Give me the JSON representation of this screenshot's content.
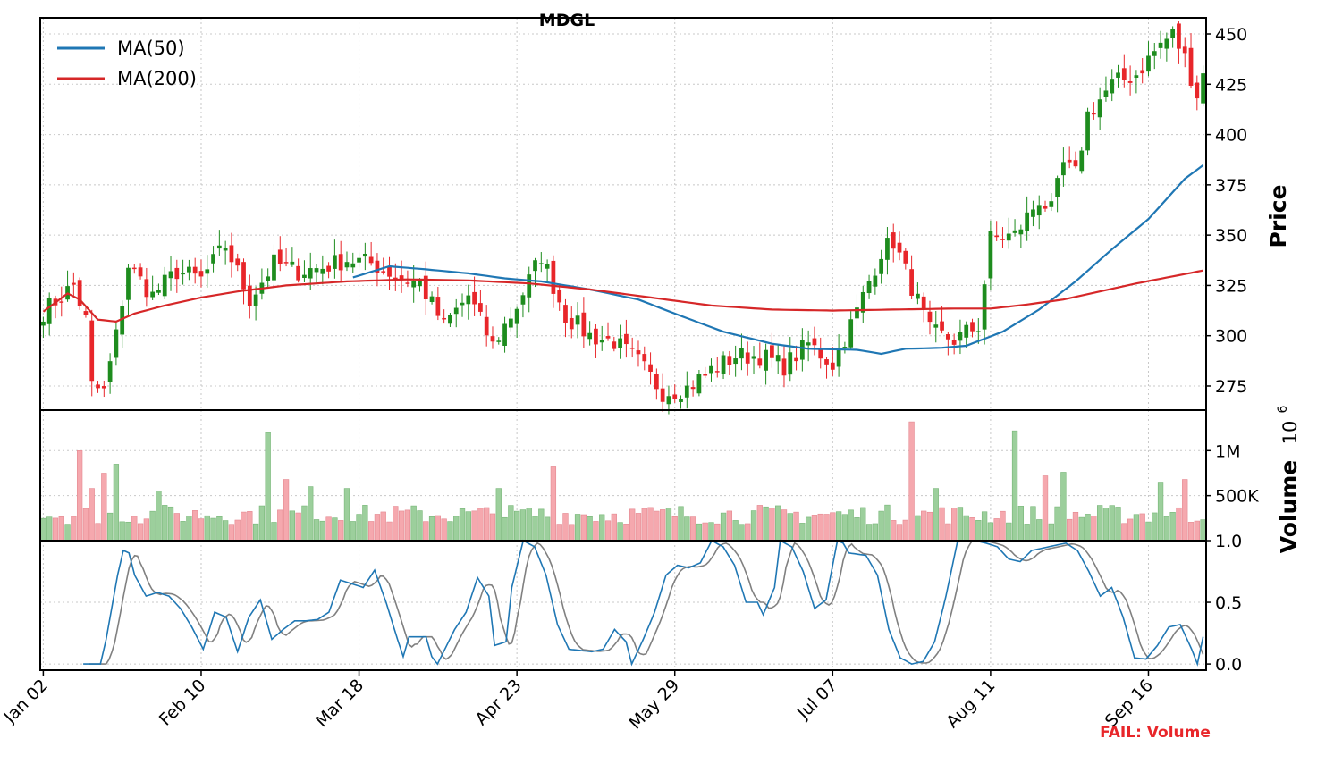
{
  "chart_data": {
    "type": "candlestick",
    "title": "MDGL",
    "ticker": "MDGL",
    "x_tick_labels": [
      "Jan 02",
      "Feb 10",
      "Mar 18",
      "Apr 23",
      "May 29",
      "Jul 07",
      "Aug 11",
      "Sep 16"
    ],
    "x_tick_index": [
      0,
      26,
      52,
      78,
      104,
      130,
      156,
      182
    ],
    "n_sessions": 192,
    "price_panel": {
      "ylabel": "Price",
      "ylim": [
        263,
        458
      ],
      "yticks": [
        275,
        300,
        325,
        350,
        375,
        400,
        425,
        450
      ],
      "grid": true,
      "legend_position": "top-left",
      "legend": [
        {
          "name": "MA(50)",
          "color": "#1f77b4"
        },
        {
          "name": "MA(200)",
          "color": "#d62728"
        }
      ],
      "close_anchors": [
        [
          0,
          312
        ],
        [
          5,
          325
        ],
        [
          7,
          308
        ],
        [
          8,
          275
        ],
        [
          10,
          272
        ],
        [
          12,
          300
        ],
        [
          14,
          335
        ],
        [
          18,
          320
        ],
        [
          22,
          332
        ],
        [
          26,
          328
        ],
        [
          30,
          345
        ],
        [
          34,
          318
        ],
        [
          38,
          336
        ],
        [
          42,
          332
        ],
        [
          46,
          334
        ],
        [
          50,
          338
        ],
        [
          54,
          336
        ],
        [
          58,
          330
        ],
        [
          62,
          326
        ],
        [
          66,
          305
        ],
        [
          70,
          320
        ],
        [
          74,
          295
        ],
        [
          78,
          315
        ],
        [
          82,
          340
        ],
        [
          86,
          310
        ],
        [
          90,
          300
        ],
        [
          94,
          297
        ],
        [
          98,
          287
        ],
        [
          102,
          272
        ],
        [
          106,
          274
        ],
        [
          110,
          283
        ],
        [
          114,
          290
        ],
        [
          118,
          290
        ],
        [
          122,
          285
        ],
        [
          126,
          296
        ],
        [
          130,
          286
        ],
        [
          134,
          312
        ],
        [
          138,
          342
        ],
        [
          140,
          347
        ],
        [
          142,
          332
        ],
        [
          146,
          302
        ],
        [
          150,
          298
        ],
        [
          154,
          305
        ],
        [
          156,
          348
        ],
        [
          160,
          350
        ],
        [
          164,
          368
        ],
        [
          166,
          362
        ],
        [
          168,
          385
        ],
        [
          170,
          380
        ],
        [
          172,
          410
        ],
        [
          176,
          425
        ],
        [
          180,
          430
        ],
        [
          184,
          445
        ],
        [
          186,
          450
        ],
        [
          188,
          438
        ],
        [
          190,
          420
        ],
        [
          192,
          440
        ]
      ],
      "moving_averages": {
        "MA(50)": {
          "color": "#1f77b4",
          "start_index": 51,
          "points": [
            [
              51,
              329
            ],
            [
              57,
              334.5
            ],
            [
              63,
              333
            ],
            [
              70,
              331
            ],
            [
              76,
              328.5
            ],
            [
              82,
              327
            ],
            [
              90,
              323
            ],
            [
              98,
              318
            ],
            [
              104,
              311
            ],
            [
              112,
              302
            ],
            [
              120,
              296
            ],
            [
              126,
              293.5
            ],
            [
              134,
              293
            ],
            [
              138,
              291
            ],
            [
              142,
              293.5
            ],
            [
              148,
              294
            ],
            [
              152,
              295
            ],
            [
              158,
              302
            ],
            [
              164,
              313
            ],
            [
              170,
              327
            ],
            [
              176,
              343
            ],
            [
              182,
              358
            ],
            [
              188,
              378
            ],
            [
              192,
              387
            ]
          ]
        },
        "MA(200)": {
          "color": "#d62728",
          "start_index": 0,
          "points": [
            [
              0,
              312
            ],
            [
              4,
              321
            ],
            [
              6,
              318
            ],
            [
              9,
              308
            ],
            [
              12,
              307
            ],
            [
              15,
              311
            ],
            [
              20,
              315
            ],
            [
              26,
              319
            ],
            [
              32,
              322
            ],
            [
              40,
              325
            ],
            [
              50,
              327
            ],
            [
              60,
              328
            ],
            [
              70,
              327.5
            ],
            [
              80,
              326
            ],
            [
              90,
              323
            ],
            [
              100,
              319
            ],
            [
              110,
              315
            ],
            [
              120,
              313
            ],
            [
              130,
              312.5
            ],
            [
              140,
              313
            ],
            [
              150,
              313.5
            ],
            [
              156,
              313.5
            ],
            [
              162,
              315.5
            ],
            [
              168,
              318
            ],
            [
              174,
              322
            ],
            [
              180,
              326
            ],
            [
              186,
              329.5
            ],
            [
              192,
              333
            ]
          ]
        }
      }
    },
    "volume_panel": {
      "ylabel": "Volume",
      "unit": "10^6",
      "ylim": [
        0,
        1.45
      ],
      "yticks": [
        0.5,
        1.0
      ],
      "ytick_labels": [
        "500K",
        "1M"
      ],
      "grid": true,
      "peaks": [
        [
          6,
          1.0
        ],
        [
          8,
          0.58
        ],
        [
          10,
          0.75
        ],
        [
          12,
          0.85
        ],
        [
          19,
          0.55
        ],
        [
          37,
          1.2
        ],
        [
          40,
          0.68
        ],
        [
          44,
          0.6
        ],
        [
          50,
          0.58
        ],
        [
          75,
          0.58
        ],
        [
          84,
          0.82
        ],
        [
          143,
          1.32
        ],
        [
          147,
          0.58
        ],
        [
          160,
          1.22
        ],
        [
          165,
          0.72
        ],
        [
          168,
          0.76
        ],
        [
          184,
          0.65
        ],
        [
          188,
          0.68
        ]
      ]
    },
    "oscillator_panel": {
      "ylim": [
        -0.05,
        1.0
      ],
      "yticks": [
        0.0,
        0.5,
        1.0
      ],
      "grid": true,
      "series": [
        {
          "color": "#1f77b4",
          "values_anchors": [
            [
              7,
              0.0
            ],
            [
              10,
              0.0
            ],
            [
              11,
              0.2
            ],
            [
              13,
              0.72
            ],
            [
              14,
              0.92
            ],
            [
              15,
              0.9
            ],
            [
              16,
              0.72
            ],
            [
              18,
              0.55
            ],
            [
              20,
              0.58
            ],
            [
              22,
              0.55
            ],
            [
              24,
              0.45
            ],
            [
              26,
              0.3
            ],
            [
              28,
              0.12
            ],
            [
              30,
              0.42
            ],
            [
              32,
              0.38
            ],
            [
              34,
              0.1
            ],
            [
              36,
              0.38
            ],
            [
              38,
              0.52
            ],
            [
              40,
              0.2
            ],
            [
              42,
              0.28
            ],
            [
              44,
              0.35
            ],
            [
              46,
              0.35
            ],
            [
              48,
              0.36
            ],
            [
              50,
              0.42
            ],
            [
              52,
              0.68
            ],
            [
              56,
              0.62
            ],
            [
              58,
              0.76
            ],
            [
              60,
              0.5
            ],
            [
              62,
              0.2
            ],
            [
              63,
              0.06
            ],
            [
              64,
              0.22
            ],
            [
              67,
              0.22
            ],
            [
              68,
              0.06
            ],
            [
              69,
              0.0
            ],
            [
              72,
              0.28
            ],
            [
              74,
              0.42
            ],
            [
              76,
              0.7
            ],
            [
              78,
              0.55
            ],
            [
              79,
              0.15
            ],
            [
              81,
              0.18
            ],
            [
              82,
              0.62
            ],
            [
              84,
              1.0
            ],
            [
              86,
              0.95
            ],
            [
              88,
              0.72
            ],
            [
              90,
              0.32
            ],
            [
              92,
              0.12
            ],
            [
              96,
              0.1
            ],
            [
              98,
              0.12
            ],
            [
              100,
              0.28
            ],
            [
              102,
              0.18
            ],
            [
              103,
              0.0
            ],
            [
              105,
              0.2
            ],
            [
              107,
              0.42
            ],
            [
              109,
              0.72
            ],
            [
              111,
              0.8
            ],
            [
              113,
              0.78
            ],
            [
              115,
              0.82
            ],
            [
              117,
              1.0
            ],
            [
              119,
              0.95
            ],
            [
              121,
              0.8
            ],
            [
              123,
              0.5
            ],
            [
              125,
              0.5
            ],
            [
              126,
              0.4
            ],
            [
              128,
              0.62
            ],
            [
              129,
              1.0
            ],
            [
              131,
              0.95
            ],
            [
              133,
              0.75
            ],
            [
              135,
              0.45
            ],
            [
              137,
              0.52
            ],
            [
              139,
              1.0
            ],
            [
              140,
              0.98
            ],
            [
              141,
              0.9
            ],
            [
              144,
              0.88
            ],
            [
              146,
              0.72
            ],
            [
              148,
              0.28
            ],
            [
              150,
              0.05
            ],
            [
              152,
              0.0
            ],
            [
              154,
              0.02
            ],
            [
              156,
              0.18
            ],
            [
              158,
              0.55
            ],
            [
              160,
              0.99
            ],
            [
              163,
              1.0
            ],
            [
              165,
              0.98
            ],
            [
              167,
              0.95
            ],
            [
              169,
              0.85
            ],
            [
              171,
              0.83
            ],
            [
              173,
              0.92
            ],
            [
              175,
              0.94
            ],
            [
              177,
              0.96
            ],
            [
              179,
              0.98
            ],
            [
              181,
              0.92
            ],
            [
              183,
              0.75
            ],
            [
              185,
              0.55
            ],
            [
              187,
              0.62
            ],
            [
              189,
              0.38
            ],
            [
              191,
              0.05
            ],
            [
              193,
              0.04
            ],
            [
              195,
              0.15
            ],
            [
              197,
              0.3
            ],
            [
              199,
              0.32
            ],
            [
              201,
              0.12
            ],
            [
              202,
              0.0
            ],
            [
              203,
              0.22
            ]
          ]
        },
        {
          "color": "#808080",
          "lag": 1.2
        }
      ]
    }
  },
  "status_label": "FAIL: Volume"
}
